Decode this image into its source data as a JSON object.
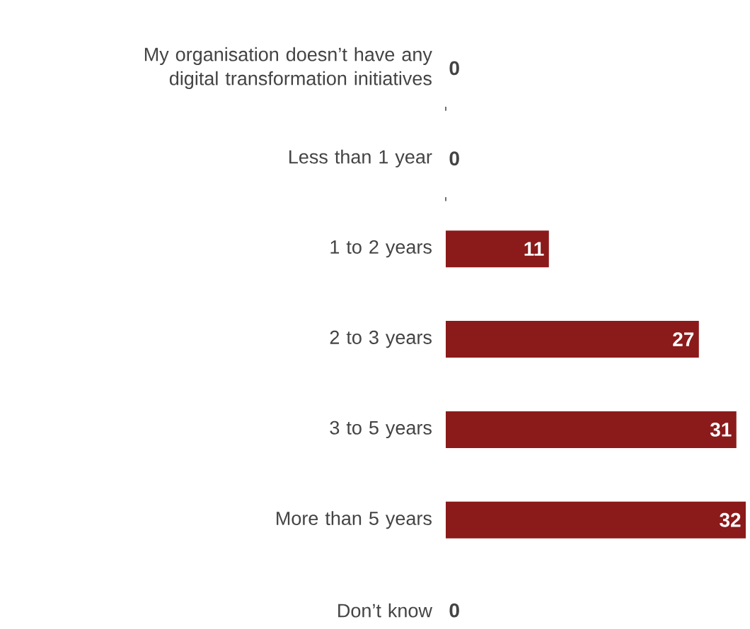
{
  "chart_data": {
    "type": "bar",
    "orientation": "horizontal",
    "categories": [
      "My organisation doesn’t have any digital transformation initiatives",
      "Less than 1 year",
      "1 to 2 years",
      "2 to 3 years",
      "3 to 5 years",
      "More than 5 years",
      "Don’t know"
    ],
    "values": [
      0,
      0,
      11,
      27,
      31,
      32,
      0
    ],
    "color": "#8b1a1a",
    "data_labels": true
  }
}
